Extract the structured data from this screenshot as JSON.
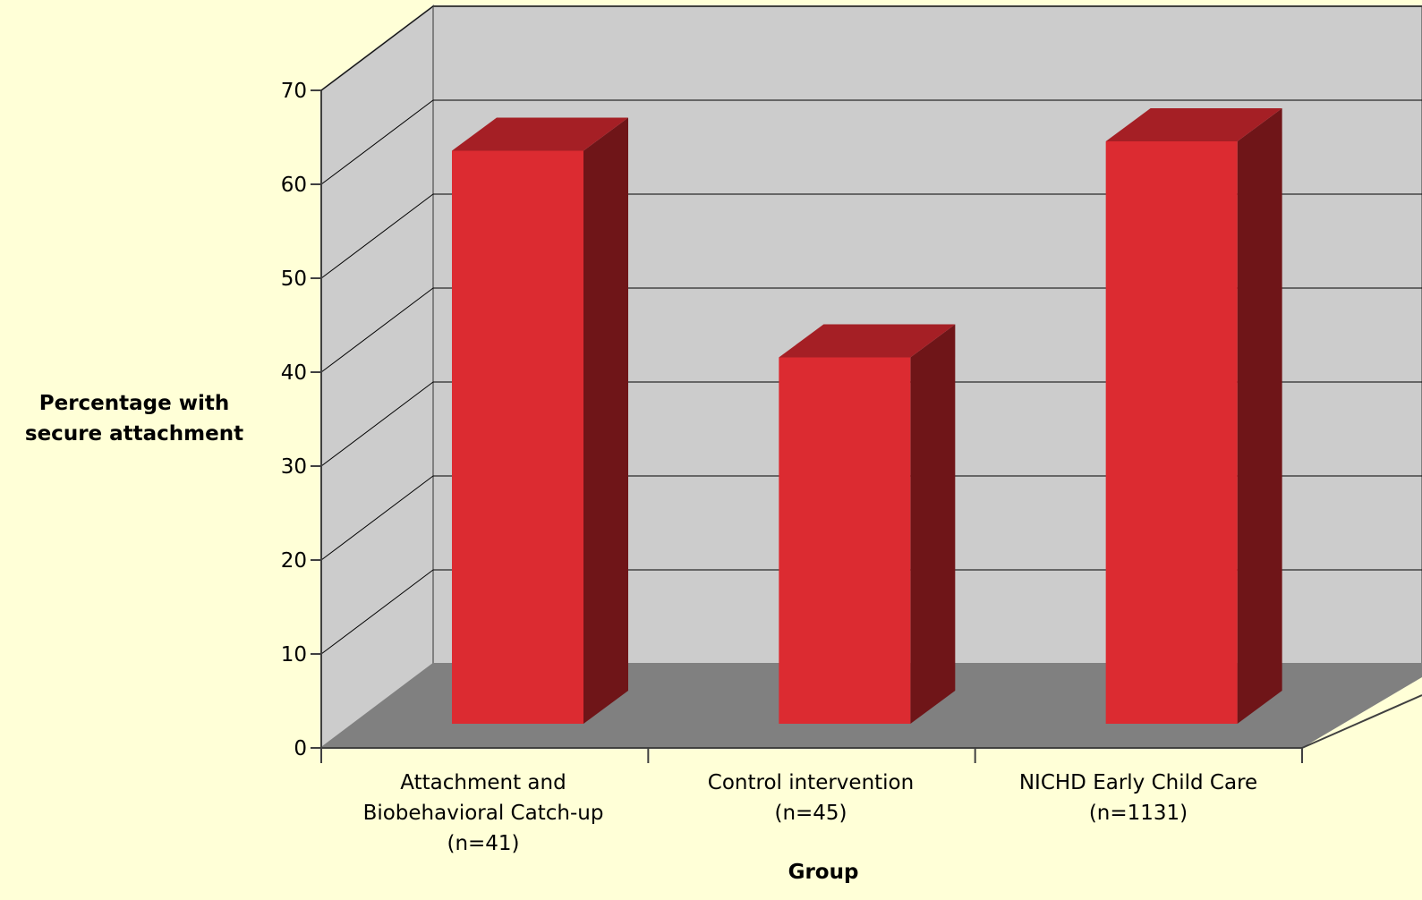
{
  "chart_data": {
    "type": "bar",
    "style": "3d",
    "categories": [
      [
        "Attachment and",
        "Biobehavioral Catch-up",
        "(n=41)"
      ],
      [
        "Control intervention",
        "(n=45)"
      ],
      [
        "NICHD Early Child Care",
        "(n=1131)"
      ]
    ],
    "values": [
      61,
      39,
      62
    ],
    "xlabel": "Group",
    "ylabel": [
      "Percentage with",
      "secure attachment"
    ],
    "ylim": [
      0,
      70
    ],
    "yticks": [
      0,
      10,
      20,
      30,
      40,
      50,
      60,
      70
    ],
    "grid": true,
    "legend": "none",
    "colors": {
      "background": "#ffffd7",
      "wall": "#cccccc",
      "floor": "#808080",
      "bar_front": "#dc2b31",
      "bar_top": "#a51f25",
      "bar_side": "#6f1518",
      "gridline": "#000000"
    }
  }
}
